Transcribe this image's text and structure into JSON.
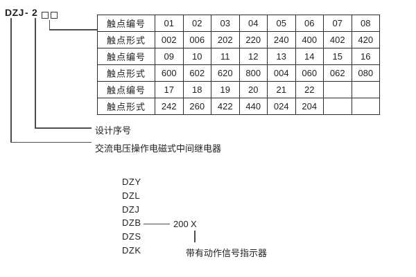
{
  "model_code": {
    "prefix": "DZJ",
    "dash": "-",
    "series": "2"
  },
  "table": {
    "rows": [
      {
        "label": "触点编号",
        "values": [
          "01",
          "02",
          "03",
          "04",
          "05",
          "06",
          "07",
          "08"
        ]
      },
      {
        "label": "触点形式",
        "values": [
          "002",
          "006",
          "202",
          "220",
          "240",
          "400",
          "402",
          "420"
        ]
      },
      {
        "label": "触点编号",
        "values": [
          "09",
          "10",
          "11",
          "12",
          "13",
          "14",
          "15",
          "16"
        ]
      },
      {
        "label": "触点形式",
        "values": [
          "600",
          "602",
          "620",
          "800",
          "004",
          "060",
          "062",
          "080"
        ]
      },
      {
        "label": "触点编号",
        "values": [
          "17",
          "18",
          "19",
          "20",
          "21",
          "22",
          "",
          ""
        ]
      },
      {
        "label": "触点形式",
        "values": [
          "242",
          "260",
          "422",
          "440",
          "024",
          "204",
          "",
          ""
        ]
      }
    ]
  },
  "callouts": {
    "design_serial": "设计序号",
    "relay_description": "交流电压操作电磁式中间继电器"
  },
  "model_list": {
    "items": [
      "DZY",
      "DZL",
      "DZJ",
      "DZB",
      "DZS",
      "DZK"
    ],
    "dzb_suffix": "200",
    "dzb_variable": "X",
    "indicator_note": "带有动作信号指示器"
  },
  "colors": {
    "ink": "#1f1f1f",
    "line": "#4d4d4d",
    "table_border": "#2b2b2b",
    "background": "#ffffff"
  }
}
